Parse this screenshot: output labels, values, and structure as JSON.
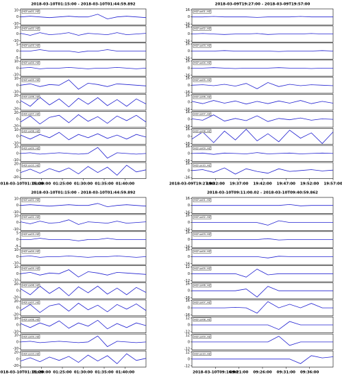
{
  "chart_data": [
    {
      "type": "waveform",
      "title": "2018-03-10T01:15:00  -  2018-03-10T01:44:59.892",
      "color": "#1f1fd0",
      "xlim": [
        "01:15:00",
        "01:45:00"
      ],
      "xticks": [
        "2018-03-10T01:15:00",
        "01:20:00",
        "01:25:00",
        "01:30:00",
        "01:35:00",
        "01:40:00"
      ],
      "traces": [
        {
          "name": "HCF.ux01..HZ",
          "ylim": [
            -12,
            12
          ],
          "yticks": [
            10,
            0,
            -10
          ],
          "values": [
            0,
            1,
            0,
            -1,
            0,
            1,
            0,
            0,
            4,
            -3,
            0,
            1,
            0,
            -1
          ]
        },
        {
          "name": "HCF.ux02..HZ",
          "ylim": [
            -12,
            12
          ],
          "yticks": [
            10,
            0,
            -10
          ],
          "values": [
            1,
            -2,
            2,
            -1,
            0,
            2,
            -2,
            1,
            0,
            -1,
            2,
            -1,
            0,
            1
          ]
        },
        {
          "name": "HCF.ux03..HZ",
          "ylim": [
            -6,
            6
          ],
          "yticks": [
            5,
            0,
            -5
          ],
          "values": [
            0,
            0,
            1,
            0,
            0,
            0,
            -1,
            0,
            0,
            1,
            0,
            0,
            0,
            0
          ]
        },
        {
          "name": "HCF.ux04..HZ",
          "ylim": [
            -12,
            12
          ],
          "yticks": [
            10,
            0,
            -10
          ],
          "values": [
            0,
            1,
            -1,
            0,
            0,
            1,
            0,
            -1,
            0,
            0,
            1,
            0,
            -1,
            0
          ]
        },
        {
          "name": "HCF.ux05..HZ",
          "ylim": [
            -12,
            12
          ],
          "yticks": [
            10,
            0,
            -10
          ],
          "values": [
            0,
            2,
            -2,
            1,
            0,
            8,
            -6,
            3,
            1,
            -2,
            2,
            1,
            0,
            -1
          ]
        },
        {
          "name": "HCF.ux06..HZ",
          "ylim": [
            -24,
            24
          ],
          "yticks": [
            20,
            0,
            -20
          ],
          "values": [
            5,
            -12,
            15,
            -8,
            10,
            -14,
            12,
            -6,
            14,
            -10,
            8,
            -12,
            10,
            -5
          ]
        },
        {
          "name": "HCF.ux07..HZ",
          "ylim": [
            -24,
            24
          ],
          "yticks": [
            20,
            0,
            -20
          ],
          "values": [
            -8,
            10,
            -14,
            6,
            12,
            -10,
            14,
            -6,
            8,
            -12,
            10,
            -4,
            12,
            -8
          ]
        },
        {
          "name": "HCF.ux08..HZ",
          "ylim": [
            -12,
            12
          ],
          "yticks": [
            10,
            0,
            -10
          ],
          "values": [
            2,
            -4,
            3,
            -2,
            6,
            -5,
            3,
            -2,
            4,
            -3,
            2,
            -4,
            3,
            -1
          ]
        },
        {
          "name": "HCF.ux09..HZ",
          "ylim": [
            -12,
            12
          ],
          "yticks": [
            10,
            0,
            -10
          ],
          "values": [
            0,
            1,
            -1,
            0,
            1,
            0,
            -1,
            0,
            9,
            -7,
            1,
            0,
            -1,
            0
          ]
        },
        {
          "name": "HCF.ux10..HZ",
          "ylim": [
            -24,
            24
          ],
          "yticks": [
            20,
            0,
            -20
          ],
          "values": [
            -6,
            4,
            -8,
            6,
            -4,
            8,
            -10,
            12,
            -6,
            10,
            -14,
            16,
            -4,
            2
          ]
        }
      ]
    },
    {
      "type": "waveform",
      "title": "2018-03-09T19:27:00  -  2018-03-09T19:57:00",
      "color": "#1f1fd0",
      "xlim": [
        "19:27:00",
        "19:57:00"
      ],
      "xticks": [
        "2018-03-09T19:27:00",
        "19:32:00",
        "19:37:00",
        "19:42:00",
        "19:47:00",
        "19:52:00",
        "19:57:00"
      ],
      "traces": [
        {
          "name": "HCF.ux01..HZ",
          "ylim": [
            -18,
            18
          ],
          "yticks": [
            16,
            0,
            -16
          ],
          "values": [
            0,
            0,
            1,
            0,
            0,
            0,
            -1,
            0,
            0,
            0,
            1,
            0,
            0,
            0
          ]
        },
        {
          "name": "HCF.ux02..HZ",
          "ylim": [
            -18,
            18
          ],
          "yticks": [
            16,
            0,
            -16
          ],
          "values": [
            0,
            1,
            0,
            -1,
            0,
            0,
            1,
            -1,
            0,
            0,
            0,
            1,
            0,
            0
          ]
        },
        {
          "name": "HCF.ux03..HZ",
          "ylim": [
            -18,
            18
          ],
          "yticks": [
            16,
            0,
            -16
          ],
          "values": [
            0,
            0,
            0,
            1,
            0,
            0,
            0,
            0,
            -1,
            0,
            0,
            0,
            1,
            0
          ]
        },
        {
          "name": "HCF.ux04..HZ",
          "ylim": [
            -18,
            18
          ],
          "yticks": [
            16,
            0,
            -16
          ],
          "values": [
            0,
            0,
            1,
            0,
            -1,
            0,
            0,
            0,
            1,
            0,
            0,
            -1,
            0,
            0
          ]
        },
        {
          "name": "HCF.ux05..HZ",
          "ylim": [
            -18,
            18
          ],
          "yticks": [
            16,
            0,
            -16
          ],
          "values": [
            0,
            1,
            -1,
            2,
            -2,
            4,
            -8,
            6,
            -3,
            2,
            -1,
            1,
            0,
            -1
          ]
        },
        {
          "name": "HCF.ux06..HZ",
          "ylim": [
            -18,
            18
          ],
          "yticks": [
            16,
            0,
            -16
          ],
          "values": [
            2,
            -3,
            4,
            -2,
            3,
            -4,
            2,
            -3,
            3,
            -2,
            4,
            -3,
            2,
            -2
          ]
        },
        {
          "name": "HCF.ux07..HZ",
          "ylim": [
            -18,
            18
          ],
          "yticks": [
            16,
            0,
            -16
          ],
          "values": [
            1,
            -2,
            10,
            -4,
            2,
            -3,
            8,
            -5,
            2,
            -1,
            3,
            -2,
            1,
            0
          ]
        },
        {
          "name": "HCF.ux08..HZ",
          "ylim": [
            -18,
            18
          ],
          "yticks": [
            16,
            0,
            -16
          ],
          "values": [
            -6,
            10,
            -14,
            12,
            -8,
            16,
            -10,
            6,
            -12,
            14,
            -4,
            8,
            -16,
            10
          ]
        },
        {
          "name": "HCF.ux09..HZ",
          "ylim": [
            -18,
            18
          ],
          "yticks": [
            16,
            0,
            -16
          ],
          "values": [
            0,
            1,
            -2,
            1,
            0,
            -1,
            2,
            -1,
            0,
            1,
            -1,
            0,
            1,
            0
          ]
        },
        {
          "name": "HCF.ux10..HZ",
          "ylim": [
            -18,
            18
          ],
          "yticks": [
            16,
            0,
            -16
          ],
          "values": [
            0,
            2,
            -4,
            6,
            -8,
            4,
            -2,
            -6,
            4,
            -2,
            0,
            2,
            -1,
            1
          ]
        }
      ]
    },
    {
      "type": "waveform",
      "title": "2018-03-10T01:15:00  -  2018-03-10T01:44:59.892",
      "color": "#1f1fd0",
      "xlim": [
        "01:15:00",
        "01:45:00"
      ],
      "xticks": [
        "2018-03-10T01:15:00",
        "01:20:00",
        "01:25:00",
        "01:30:00",
        "01:35:00",
        "01:40:00"
      ],
      "traces": [
        {
          "name": "HCF.ux01..HZ",
          "ylim": [
            -12,
            12
          ],
          "yticks": [
            10,
            0,
            -10
          ],
          "values": [
            0,
            1,
            0,
            -1,
            0,
            1,
            0,
            0,
            3,
            -2,
            0,
            1,
            0,
            -1
          ]
        },
        {
          "name": "HCF.ux02..HZ",
          "ylim": [
            -12,
            12
          ],
          "yticks": [
            10,
            0,
            -10
          ],
          "values": [
            1,
            -2,
            2,
            -1,
            0,
            4,
            -3,
            1,
            0,
            -1,
            2,
            -1,
            0,
            1
          ]
        },
        {
          "name": "HCF.ux03..HZ",
          "ylim": [
            -6,
            6
          ],
          "yticks": [
            5,
            0,
            -5
          ],
          "values": [
            0,
            0,
            1,
            0,
            0,
            0,
            -1,
            0,
            0,
            1,
            0,
            0,
            0,
            0
          ]
        },
        {
          "name": "HCF.ux04..HZ",
          "ylim": [
            -12,
            12
          ],
          "yticks": [
            10,
            0,
            -10
          ],
          "values": [
            0,
            1,
            -1,
            0,
            0,
            1,
            0,
            -1,
            0,
            0,
            1,
            0,
            -1,
            0
          ]
        },
        {
          "name": "HCF.ux05..HZ",
          "ylim": [
            -12,
            12
          ],
          "yticks": [
            10,
            0,
            -10
          ],
          "values": [
            0,
            2,
            -2,
            1,
            0,
            6,
            -5,
            3,
            1,
            -2,
            2,
            1,
            0,
            -1
          ]
        },
        {
          "name": "HCF.ux06..HZ",
          "ylim": [
            -24,
            24
          ],
          "yticks": [
            20,
            0,
            -20
          ],
          "values": [
            6,
            -12,
            14,
            -8,
            10,
            -15,
            12,
            -6,
            14,
            -10,
            8,
            -12,
            10,
            -5
          ]
        },
        {
          "name": "HCF.ux07..HZ",
          "ylim": [
            -24,
            24
          ],
          "yticks": [
            20,
            0,
            -20
          ],
          "values": [
            -8,
            10,
            -14,
            6,
            12,
            -10,
            14,
            -6,
            8,
            -12,
            10,
            -4,
            12,
            -8
          ]
        },
        {
          "name": "HCF.ux08..HZ",
          "ylim": [
            -12,
            12
          ],
          "yticks": [
            10,
            0,
            -10
          ],
          "values": [
            2,
            -4,
            3,
            -2,
            6,
            -5,
            3,
            -2,
            7,
            -6,
            2,
            -4,
            3,
            -1
          ]
        },
        {
          "name": "HCF.ux09..HZ",
          "ylim": [
            -12,
            12
          ],
          "yticks": [
            10,
            0,
            -10
          ],
          "values": [
            0,
            1,
            -1,
            0,
            1,
            0,
            -1,
            0,
            9,
            -7,
            1,
            0,
            -1,
            0
          ]
        },
        {
          "name": "HCF.ux10..HZ",
          "ylim": [
            -24,
            24
          ],
          "yticks": [
            20,
            0,
            -20
          ],
          "values": [
            -6,
            4,
            -8,
            6,
            -4,
            8,
            -10,
            12,
            -6,
            10,
            -14,
            16,
            -4,
            2
          ]
        }
      ]
    },
    {
      "type": "waveform",
      "title": "2018-03-10T09:11:00.02  -  2018-03-10T09:40:59.862",
      "color": "#1f1fd0",
      "xlim": [
        "09:11:00",
        "09:41:00"
      ],
      "xticks": [
        "2018-03-10T09:16:00",
        "09:21:00",
        "09:26:00",
        "09:31:00",
        "09:36:00"
      ],
      "traces": [
        {
          "name": "HCF.ux01..HZ",
          "ylim": [
            -18,
            18
          ],
          "yticks": [
            16,
            0,
            -16
          ],
          "values": [
            0,
            0,
            0,
            0,
            0,
            0,
            0,
            0,
            0,
            2,
            -1,
            0,
            0,
            0
          ]
        },
        {
          "name": "HCF.ux02..HZ",
          "ylim": [
            -18,
            18
          ],
          "yticks": [
            16,
            0,
            -16
          ],
          "values": [
            0,
            0,
            0,
            0,
            0,
            0,
            0,
            -6,
            4,
            0,
            0,
            0,
            0,
            0
          ]
        },
        {
          "name": "HCF.ux03..HZ",
          "ylim": [
            -18,
            18
          ],
          "yticks": [
            16,
            0,
            -16
          ],
          "values": [
            0,
            0,
            0,
            0,
            0,
            0,
            0,
            2,
            -1,
            0,
            0,
            0,
            0,
            0
          ]
        },
        {
          "name": "HCF.ux04..HZ",
          "ylim": [
            -18,
            18
          ],
          "yticks": [
            16,
            0,
            -16
          ],
          "values": [
            0,
            0,
            0,
            0,
            0,
            0,
            0,
            -3,
            1,
            0,
            0,
            0,
            0,
            0
          ]
        },
        {
          "name": "HCF.ux05..HZ",
          "ylim": [
            -14,
            14
          ],
          "yticks": [
            12,
            0,
            -12
          ],
          "values": [
            0,
            0,
            0,
            0,
            0,
            -6,
            8,
            -2,
            0,
            0,
            0,
            0,
            0,
            0
          ]
        },
        {
          "name": "HCF.ux06..HZ",
          "ylim": [
            -18,
            18
          ],
          "yticks": [
            16,
            0,
            -16
          ],
          "values": [
            0,
            0,
            0,
            0,
            0,
            4,
            -14,
            10,
            0,
            0,
            0,
            0,
            0,
            0
          ]
        },
        {
          "name": "HCF.ux07..HZ",
          "ylim": [
            -18,
            18
          ],
          "yticks": [
            16,
            0,
            -16
          ],
          "values": [
            0,
            0,
            0,
            0,
            1,
            0,
            -12,
            14,
            0,
            8,
            0,
            10,
            0,
            0
          ]
        },
        {
          "name": "HCF.ux08..HZ",
          "ylim": [
            -14,
            14
          ],
          "yticks": [
            12,
            0,
            -12
          ],
          "values": [
            0,
            0,
            0,
            0,
            0,
            0,
            0,
            0,
            -8,
            6,
            0,
            0,
            0,
            0
          ]
        },
        {
          "name": "HCF.ux09..HZ",
          "ylim": [
            -14,
            14
          ],
          "yticks": [
            12,
            0,
            -12
          ],
          "values": [
            0,
            0,
            0,
            0,
            0,
            0,
            0,
            0,
            10,
            -6,
            0,
            0,
            0,
            0
          ]
        },
        {
          "name": "HCF.ux10..HZ",
          "ylim": [
            -14,
            14
          ],
          "yticks": [
            12,
            0,
            -12
          ],
          "values": [
            0,
            0,
            0,
            0,
            0,
            0,
            0,
            0,
            0,
            0,
            -8,
            6,
            2,
            4
          ]
        }
      ]
    }
  ]
}
